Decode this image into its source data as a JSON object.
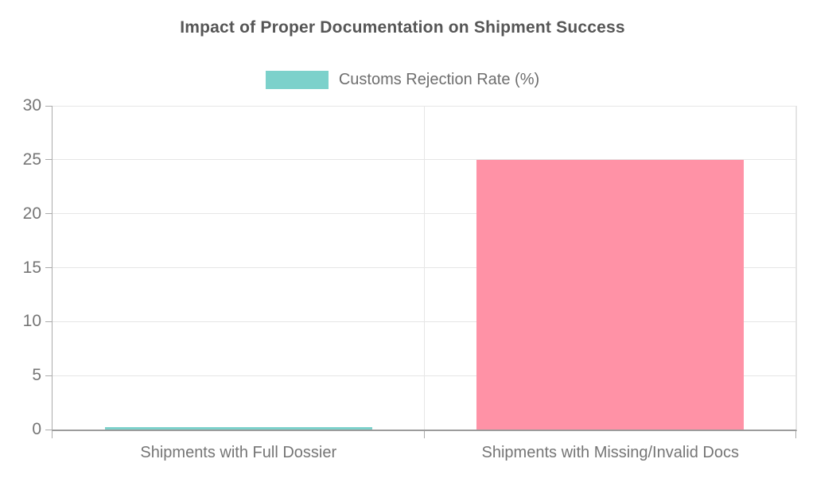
{
  "chart_data": {
    "type": "bar",
    "title": "Impact of Proper Documentation on Shipment Success",
    "categories": [
      "Shipments with Full Dossier",
      "Shipments with Missing/Invalid Docs"
    ],
    "series": [
      {
        "name": "Customs Rejection Rate (%)",
        "values": [
          0.2,
          25
        ]
      }
    ],
    "bar_colors": [
      "#7cd1cb",
      "#ff92a6"
    ],
    "legend": {
      "entries": [
        "Customs Rejection Rate (%)"
      ],
      "position": "top",
      "swatch_color": "#7cd1cb"
    },
    "xlabel": "",
    "ylabel": "",
    "ylim": [
      0,
      30
    ],
    "yticks": [
      0,
      5,
      10,
      15,
      20,
      25,
      30
    ],
    "grid": true
  },
  "colors": {
    "background": "#ffffff",
    "title_text": "#565656",
    "axis_text": "#757575",
    "legend_text": "#6e6e6e",
    "gridline": "#e6e6e6",
    "axis_line": "#9c9c9c",
    "tick_line": "#ababab",
    "bar_full_dossier": "#7cd1cb",
    "bar_missing_docs": "#ff92a6"
  }
}
